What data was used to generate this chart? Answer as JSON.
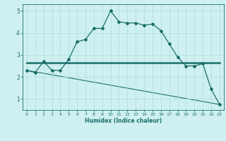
{
  "xlabel": "Humidex (Indice chaleur)",
  "ylabel": "",
  "background_color": "#cff0f0",
  "grid_color": "#aadddd",
  "line_color": "#1a6e6a",
  "xlim": [
    -0.5,
    23.5
  ],
  "ylim": [
    0.5,
    5.3
  ],
  "xticks": [
    0,
    1,
    2,
    3,
    4,
    5,
    6,
    7,
    8,
    9,
    10,
    11,
    12,
    13,
    14,
    15,
    16,
    17,
    18,
    19,
    20,
    21,
    22,
    23
  ],
  "yticks": [
    1,
    2,
    3,
    4,
    5
  ],
  "line1_x": [
    0,
    1,
    2,
    3,
    4,
    5,
    6,
    7,
    8,
    9,
    10,
    11,
    12,
    13,
    14,
    15,
    16,
    17,
    18,
    19,
    20,
    21,
    22,
    23
  ],
  "line1_y": [
    2.3,
    2.2,
    2.7,
    2.3,
    2.3,
    2.8,
    3.6,
    3.7,
    4.2,
    4.2,
    5.0,
    4.5,
    4.45,
    4.45,
    4.35,
    4.4,
    4.1,
    3.5,
    2.9,
    2.5,
    2.5,
    2.6,
    1.45,
    0.75
  ],
  "line2_x": [
    0,
    23
  ],
  "line2_y": [
    2.65,
    2.65
  ],
  "line3_x": [
    0,
    23
  ],
  "line3_y": [
    2.3,
    0.75
  ]
}
